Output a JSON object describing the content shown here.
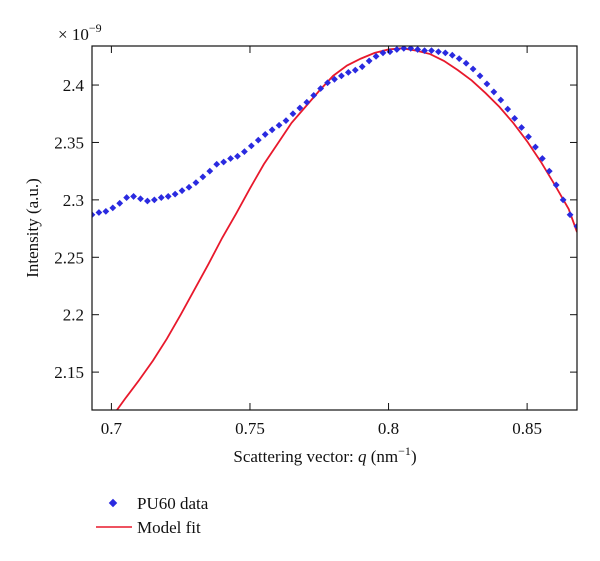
{
  "chart_data": {
    "type": "line",
    "title": "",
    "xlabel": "Scattering vector: q (nm⁻¹)",
    "xlabel_parts": {
      "prefix": "Scattering vector: ",
      "var": "q",
      "unit_open": " (nm",
      "unit_exp": "−1",
      "unit_close": ")"
    },
    "ylabel": "Intensity (a.u.)",
    "y_multiplier": {
      "base": "× 10",
      "exp": "−9"
    },
    "xlim": [
      0.693,
      0.868
    ],
    "ylim": [
      2.117,
      2.434
    ],
    "xticks": [
      0.7,
      0.75,
      0.8,
      0.85
    ],
    "xtick_labels": [
      "0.7",
      "0.75",
      "0.8",
      "0.85"
    ],
    "yticks": [
      2.15,
      2.2,
      2.25,
      2.3,
      2.35,
      2.4
    ],
    "ytick_labels": [
      "2.15",
      "2.2",
      "2.25",
      "2.3",
      "2.35",
      "2.4"
    ],
    "grid": false,
    "legend_position": "bottom-left-outside",
    "series": [
      {
        "name": "PU60 data",
        "style": "markers",
        "color": "#2a2ae0",
        "x": [
          0.693,
          0.6955,
          0.698,
          0.7005,
          0.703,
          0.7055,
          0.708,
          0.7105,
          0.713,
          0.7155,
          0.718,
          0.7205,
          0.723,
          0.7255,
          0.728,
          0.7305,
          0.733,
          0.7355,
          0.738,
          0.7405,
          0.743,
          0.7455,
          0.748,
          0.7505,
          0.753,
          0.7555,
          0.758,
          0.7605,
          0.763,
          0.7655,
          0.768,
          0.7705,
          0.773,
          0.7755,
          0.778,
          0.7805,
          0.783,
          0.7855,
          0.788,
          0.7905,
          0.793,
          0.7955,
          0.798,
          0.8005,
          0.803,
          0.8055,
          0.808,
          0.8105,
          0.813,
          0.8155,
          0.818,
          0.8205,
          0.823,
          0.8255,
          0.828,
          0.8305,
          0.833,
          0.8355,
          0.838,
          0.8405,
          0.843,
          0.8455,
          0.848,
          0.8505,
          0.853,
          0.8555,
          0.858,
          0.8605,
          0.863,
          0.8655,
          0.868
        ],
        "y": [
          2.287,
          2.289,
          2.29,
          2.293,
          2.297,
          2.302,
          2.303,
          2.301,
          2.299,
          2.3,
          2.302,
          2.303,
          2.305,
          2.308,
          2.311,
          2.315,
          2.32,
          2.325,
          2.331,
          2.333,
          2.336,
          2.338,
          2.342,
          2.347,
          2.352,
          2.357,
          2.361,
          2.365,
          2.369,
          2.375,
          2.38,
          2.385,
          2.391,
          2.397,
          2.402,
          2.405,
          2.408,
          2.411,
          2.413,
          2.416,
          2.421,
          2.425,
          2.428,
          2.429,
          2.431,
          2.432,
          2.432,
          2.431,
          2.43,
          2.43,
          2.429,
          2.428,
          2.426,
          2.423,
          2.419,
          2.414,
          2.408,
          2.401,
          2.394,
          2.387,
          2.379,
          2.371,
          2.363,
          2.355,
          2.346,
          2.336,
          2.325,
          2.313,
          2.3,
          2.287,
          2.277
        ]
      },
      {
        "name": "Model fit",
        "style": "line",
        "color": "#e8192c",
        "x": [
          0.702,
          0.705,
          0.71,
          0.715,
          0.72,
          0.725,
          0.73,
          0.735,
          0.74,
          0.745,
          0.75,
          0.755,
          0.76,
          0.765,
          0.77,
          0.775,
          0.78,
          0.785,
          0.79,
          0.795,
          0.8,
          0.805,
          0.81,
          0.815,
          0.82,
          0.825,
          0.83,
          0.835,
          0.84,
          0.845,
          0.85,
          0.855,
          0.86,
          0.865,
          0.868
        ],
        "y": [
          2.117,
          2.127,
          2.143,
          2.16,
          2.179,
          2.2,
          2.222,
          2.244,
          2.267,
          2.288,
          2.31,
          2.331,
          2.349,
          2.367,
          2.381,
          2.395,
          2.408,
          2.417,
          2.423,
          2.428,
          2.431,
          2.432,
          2.43,
          2.427,
          2.421,
          2.413,
          2.404,
          2.393,
          2.381,
          2.367,
          2.351,
          2.333,
          2.313,
          2.292,
          2.272
        ]
      }
    ]
  }
}
